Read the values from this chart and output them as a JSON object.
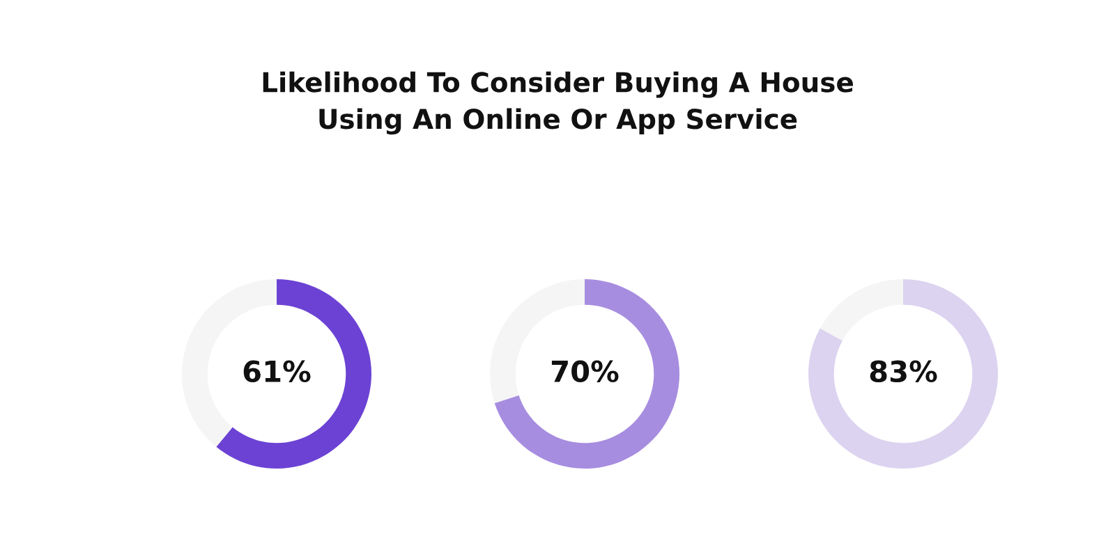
{
  "chart_data": [
    {
      "type": "donut",
      "title": "Likelihood To Consider Buying A House\nUsing An Online Or App Service",
      "categories": [
        null,
        null
      ],
      "values": [
        61,
        39
      ],
      "colors": [
        "#6c42d4",
        "#f5f5f5"
      ],
      "value_labels": [
        "61%",
        null
      ]
    },
    {
      "type": "donut",
      "categories": [
        null,
        null
      ],
      "values": [
        70,
        30
      ],
      "colors": [
        "#a78de0",
        "#f5f5f5"
      ],
      "value_labels": [
        "70%",
        null
      ]
    },
    {
      "type": "donut",
      "categories": [
        null,
        null
      ],
      "values": [
        83,
        17
      ],
      "colors": [
        "#dcd3f0",
        "#f5f5f5"
      ],
      "value_labels": [
        "83%",
        null
      ]
    }
  ]
}
